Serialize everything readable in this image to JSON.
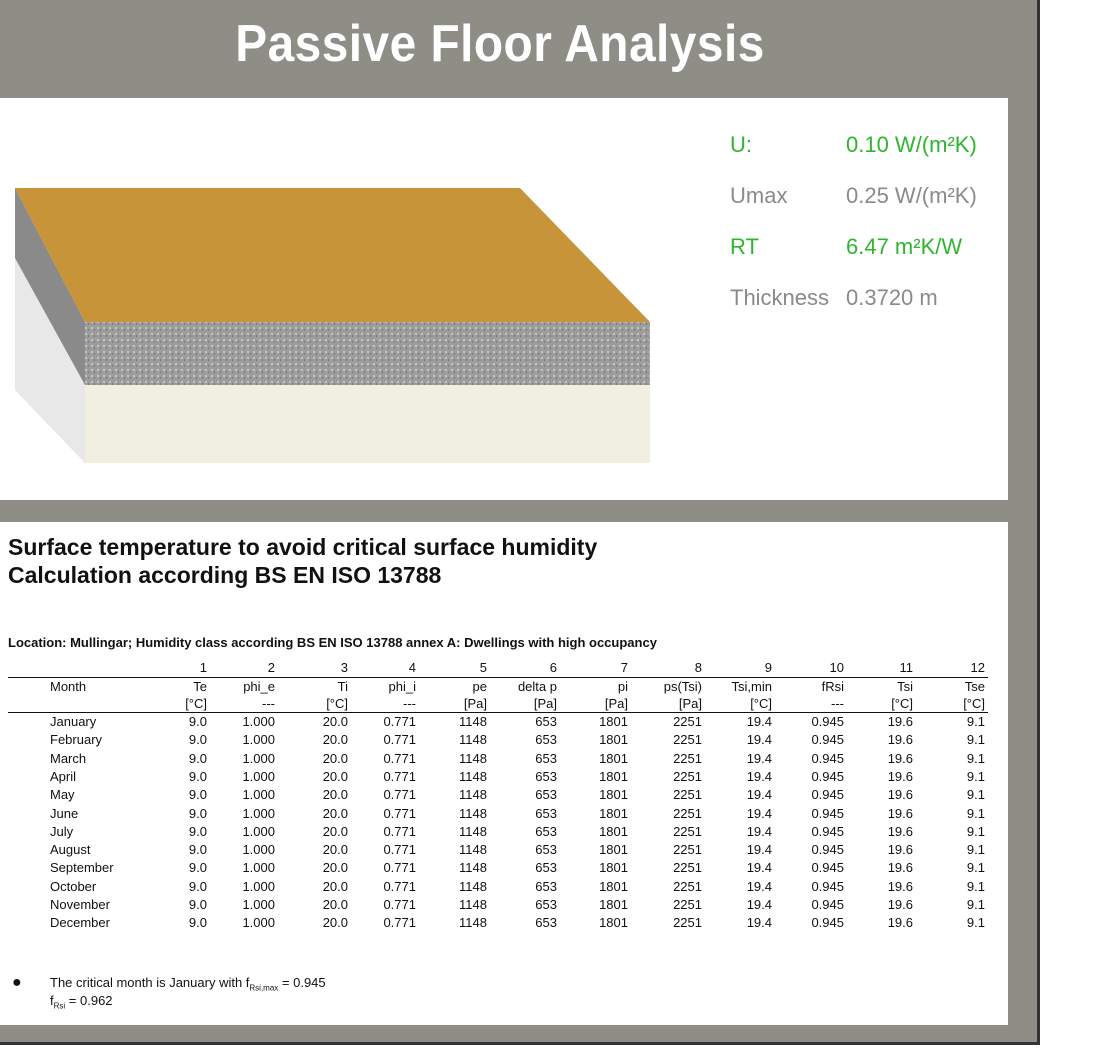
{
  "header": {
    "title": "Passive Floor Analysis"
  },
  "properties": [
    {
      "label": "U:",
      "value": "0.10 W/(m²K)"
    },
    {
      "label": "Umax",
      "value": "0.25 W/(m²K)"
    },
    {
      "label": "RT",
      "value": "6.47 m²K/W"
    },
    {
      "label": "Thickness",
      "value": "0.3720 m"
    }
  ],
  "report": {
    "title_lines": [
      "Surface temperature to avoid critical surface humidity",
      "Calculation according BS EN ISO 13788"
    ],
    "location": "Location: Mullingar; Humidity class according BS EN ISO 13788 annex A: Dwellings with high occupancy",
    "table": {
      "column_numbers": [
        "1",
        "2",
        "3",
        "4",
        "5",
        "6",
        "7",
        "8",
        "9",
        "10",
        "11",
        "12"
      ],
      "columns": [
        "Month",
        "Te",
        "phi_e",
        "Ti",
        "phi_i",
        "pe",
        "delta p",
        "pi",
        "ps(Tsi)",
        "Tsi,min",
        "fRsi",
        "Tsi",
        "Tse"
      ],
      "units": [
        "[°C]",
        "---",
        "[°C]",
        "---",
        "[Pa]",
        "[Pa]",
        "[Pa]",
        "[Pa]",
        "[°C]",
        "---",
        "[°C]",
        "[°C]"
      ],
      "rows": [
        [
          "January",
          "9.0",
          "1.000",
          "20.0",
          "0.771",
          "1148",
          "653",
          "1801",
          "2251",
          "19.4",
          "0.945",
          "19.6",
          "9.1"
        ],
        [
          "February",
          "9.0",
          "1.000",
          "20.0",
          "0.771",
          "1148",
          "653",
          "1801",
          "2251",
          "19.4",
          "0.945",
          "19.6",
          "9.1"
        ],
        [
          "March",
          "9.0",
          "1.000",
          "20.0",
          "0.771",
          "1148",
          "653",
          "1801",
          "2251",
          "19.4",
          "0.945",
          "19.6",
          "9.1"
        ],
        [
          "April",
          "9.0",
          "1.000",
          "20.0",
          "0.771",
          "1148",
          "653",
          "1801",
          "2251",
          "19.4",
          "0.945",
          "19.6",
          "9.1"
        ],
        [
          "May",
          "9.0",
          "1.000",
          "20.0",
          "0.771",
          "1148",
          "653",
          "1801",
          "2251",
          "19.4",
          "0.945",
          "19.6",
          "9.1"
        ],
        [
          "June",
          "9.0",
          "1.000",
          "20.0",
          "0.771",
          "1148",
          "653",
          "1801",
          "2251",
          "19.4",
          "0.945",
          "19.6",
          "9.1"
        ],
        [
          "July",
          "9.0",
          "1.000",
          "20.0",
          "0.771",
          "1148",
          "653",
          "1801",
          "2251",
          "19.4",
          "0.945",
          "19.6",
          "9.1"
        ],
        [
          "August",
          "9.0",
          "1.000",
          "20.0",
          "0.771",
          "1148",
          "653",
          "1801",
          "2251",
          "19.4",
          "0.945",
          "19.6",
          "9.1"
        ],
        [
          "September",
          "9.0",
          "1.000",
          "20.0",
          "0.771",
          "1148",
          "653",
          "1801",
          "2251",
          "19.4",
          "0.945",
          "19.6",
          "9.1"
        ],
        [
          "October",
          "9.0",
          "1.000",
          "20.0",
          "0.771",
          "1148",
          "653",
          "1801",
          "2251",
          "19.4",
          "0.945",
          "19.6",
          "9.1"
        ],
        [
          "November",
          "9.0",
          "1.000",
          "20.0",
          "0.771",
          "1148",
          "653",
          "1801",
          "2251",
          "19.4",
          "0.945",
          "19.6",
          "9.1"
        ],
        [
          "December",
          "9.0",
          "1.000",
          "20.0",
          "0.771",
          "1148",
          "653",
          "1801",
          "2251",
          "19.4",
          "0.945",
          "19.6",
          "9.1"
        ]
      ]
    },
    "notes": {
      "line1": {
        "text": "The critical month is January with f",
        "sub": "Rsi,max",
        "rest": " = 0.945"
      },
      "line2": {
        "text": "f",
        "sub": "Rsi",
        "rest": " = 0.962"
      }
    }
  }
}
